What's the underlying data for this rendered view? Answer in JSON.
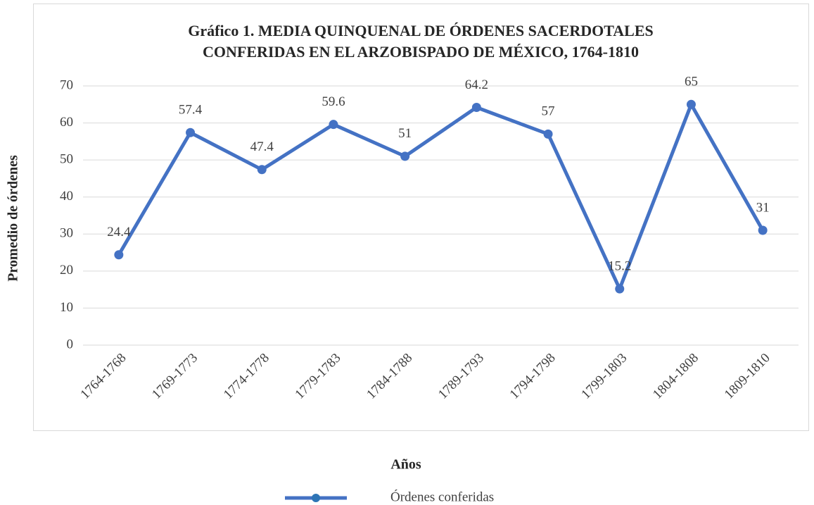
{
  "chart_data": {
    "type": "line",
    "title": [
      "Gráfico 1. MEDIA QUINQUENAL DE ÓRDENES SACERDOTALES",
      "CONFERIDAS EN EL ARZOBISPADO DE MÉXICO, 1764-1810"
    ],
    "x_label": "Años",
    "y_label": "Promedio de órdenes",
    "categories": [
      "1764-1768",
      "1769-1773",
      "1774-1778",
      "1779-1783",
      "1784-1788",
      "1789-1793",
      "1794-1798",
      "1799-1803",
      "1804-1808",
      "1809-1810"
    ],
    "series": [
      {
        "name": "Órdenes conferidas",
        "color": "#4472c4",
        "values": [
          24.4,
          57.4,
          47.4,
          59.6,
          51,
          64.2,
          57,
          15.2,
          65,
          31
        ]
      }
    ],
    "ylim": [
      0,
      70
    ],
    "yticks": [
      0,
      10,
      20,
      30,
      40,
      50,
      60,
      70
    ],
    "grid": true,
    "legend": "bottom"
  }
}
